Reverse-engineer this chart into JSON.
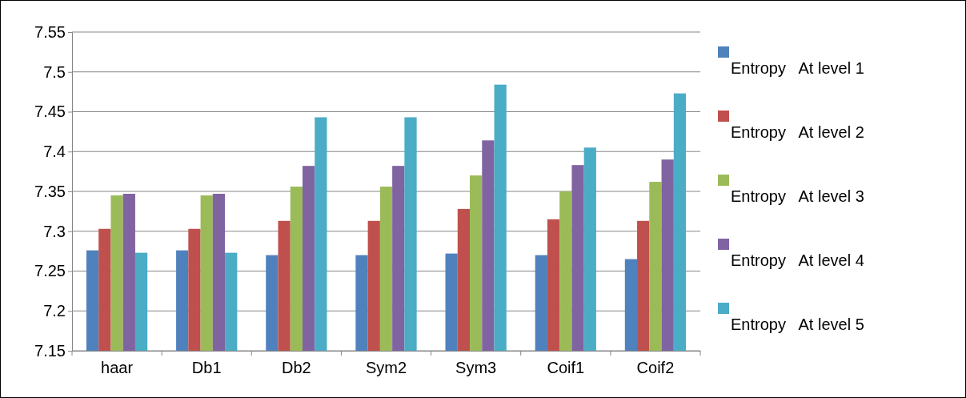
{
  "chart_data": {
    "type": "bar",
    "categories": [
      "haar",
      "Db1",
      "Db2",
      "Sym2",
      "Sym3",
      "Coif1",
      "Coif2"
    ],
    "series": [
      {
        "name": "Entropy   At level 1",
        "color": "#4f81bd",
        "values": [
          7.276,
          7.276,
          7.27,
          7.27,
          7.272,
          7.27,
          7.265
        ]
      },
      {
        "name": "Entropy   At level 2",
        "color": "#c0504d",
        "values": [
          7.303,
          7.303,
          7.313,
          7.313,
          7.328,
          7.315,
          7.313
        ]
      },
      {
        "name": "Entropy   At level 3",
        "color": "#9bbb59",
        "values": [
          7.345,
          7.345,
          7.356,
          7.356,
          7.37,
          7.35,
          7.362
        ]
      },
      {
        "name": "Entropy   At level 4",
        "color": "#8064a2",
        "values": [
          7.347,
          7.347,
          7.382,
          7.382,
          7.414,
          7.383,
          7.39
        ]
      },
      {
        "name": "Entropy   At level 5",
        "color": "#4bacc6",
        "values": [
          7.273,
          7.273,
          7.443,
          7.443,
          7.484,
          7.405,
          7.473
        ]
      }
    ],
    "ylim": [
      7.15,
      7.55
    ],
    "yticks": [
      7.15,
      7.2,
      7.25,
      7.3,
      7.35,
      7.4,
      7.45,
      7.5,
      7.55
    ],
    "grid": "y",
    "legend": "right"
  }
}
